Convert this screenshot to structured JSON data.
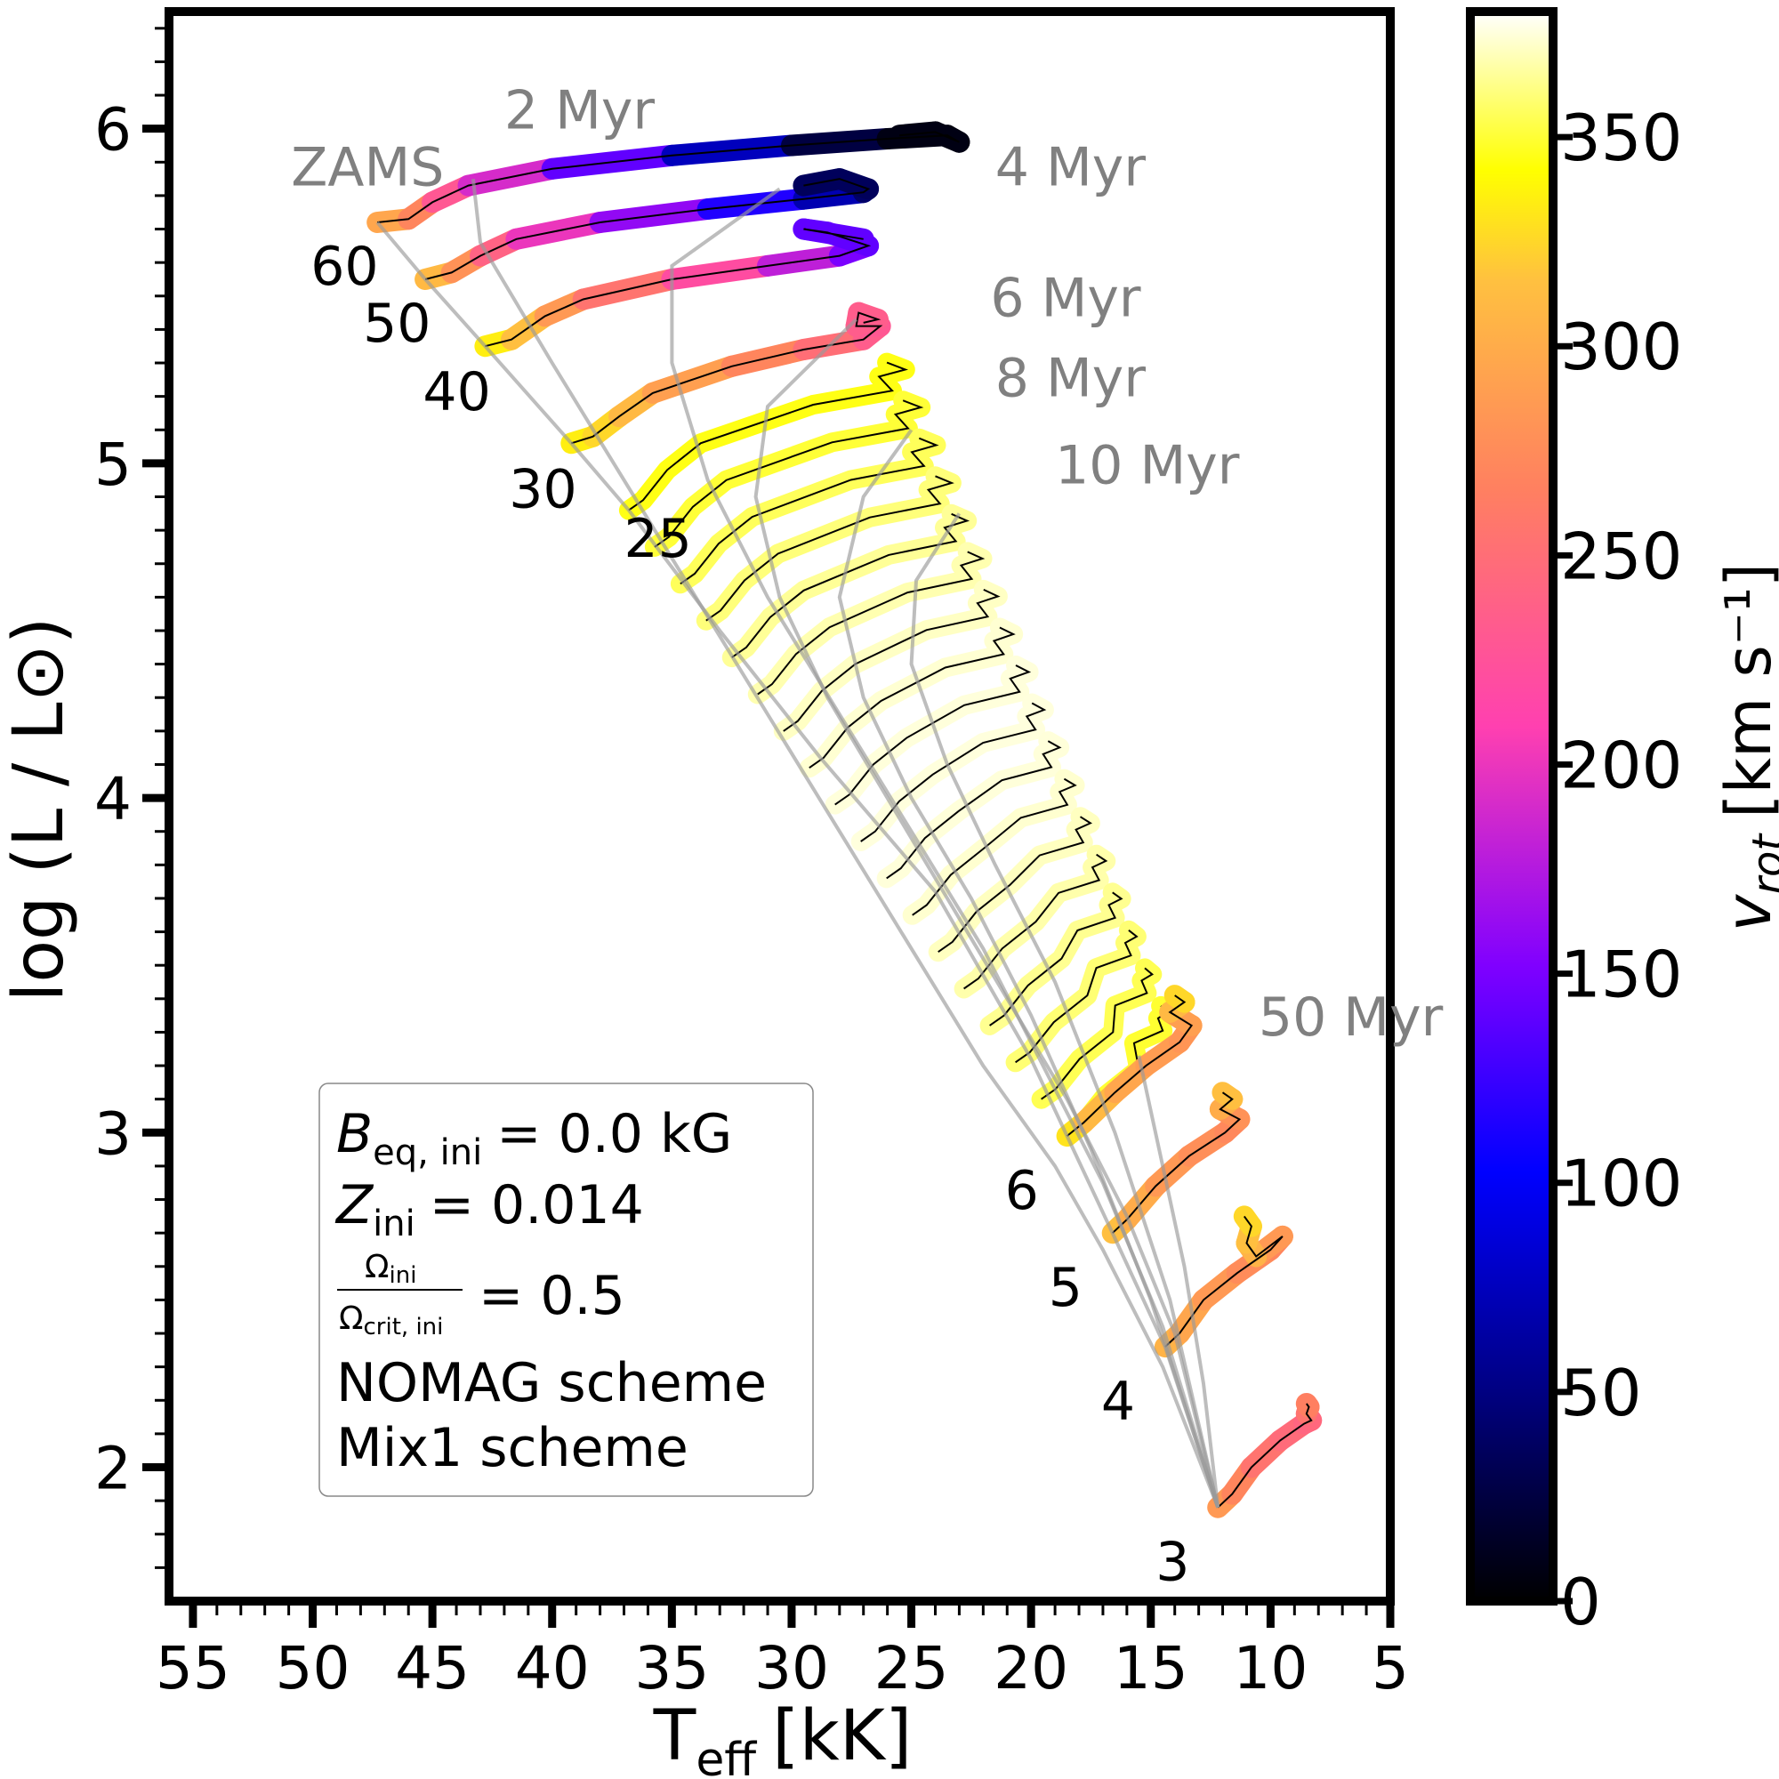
{
  "chart_data": {
    "type": "line",
    "title": "",
    "x_axis": {
      "label_base": "T",
      "label_sub": "eff",
      "label_unit": "[kK]",
      "range": [
        56,
        5
      ],
      "reversed": true,
      "ticks": [
        55,
        50,
        45,
        40,
        35,
        30,
        25,
        20,
        15,
        10,
        5
      ],
      "tick_labels": [
        "55",
        "50",
        "45",
        "40",
        "35",
        "30",
        "25",
        "20",
        "15",
        "10",
        "5"
      ]
    },
    "y_axis": {
      "label": "log (L / L⊙)",
      "range": [
        1.6,
        6.35
      ],
      "ticks": [
        2,
        3,
        4,
        5,
        6
      ],
      "tick_labels": [
        "2",
        "3",
        "4",
        "5",
        "6"
      ]
    },
    "colorbar": {
      "label": "v",
      "label_sub": "rot",
      "label_unit": "[km s⁻¹]",
      "range": [
        0,
        380
      ],
      "ticks": [
        0,
        50,
        100,
        150,
        200,
        250,
        300,
        350
      ],
      "tick_labels": [
        "0",
        "50",
        "100",
        "150",
        "200",
        "250",
        "300",
        "350"
      ],
      "colormap": "gnuplot2"
    },
    "series": [
      {
        "mass": 60,
        "label": "60",
        "x": [
          47.3,
          46.0,
          45.0,
          43.5,
          40.0,
          35.0,
          30.0,
          26.0,
          23.5,
          23.0,
          24.0,
          25.5
        ],
        "y": [
          5.72,
          5.73,
          5.78,
          5.83,
          5.88,
          5.92,
          5.95,
          5.97,
          5.98,
          5.96,
          5.99,
          5.98
        ],
        "v": [
          300,
          290,
          250,
          210,
          170,
          110,
          40,
          10,
          5,
          5,
          10,
          5
        ]
      },
      {
        "mass": 50,
        "label": "50",
        "x": [
          45.3,
          44.2,
          43.0,
          41.5,
          38.0,
          33.5,
          29.5,
          27.0,
          26.8,
          28.0,
          29.5
        ],
        "y": [
          5.55,
          5.57,
          5.62,
          5.67,
          5.72,
          5.76,
          5.79,
          5.81,
          5.82,
          5.85,
          5.83
        ],
        "v": [
          320,
          300,
          260,
          220,
          180,
          140,
          90,
          50,
          30,
          40,
          30
        ]
      },
      {
        "mass": 40,
        "label": "40",
        "x": [
          42.8,
          41.7,
          40.3,
          38.7,
          35.0,
          31.0,
          28.0,
          26.8,
          28.5,
          29.5,
          27.0
        ],
        "y": [
          5.35,
          5.37,
          5.44,
          5.49,
          5.55,
          5.59,
          5.62,
          5.65,
          5.69,
          5.7,
          5.67
        ],
        "v": [
          340,
          330,
          300,
          270,
          240,
          200,
          160,
          140,
          140,
          140,
          140
        ]
      },
      {
        "mass": 30,
        "label": "30",
        "x": [
          39.2,
          38.3,
          37.2,
          35.8,
          32.5,
          29.5,
          27.0,
          26.3,
          27.3,
          27.2,
          26.4,
          27.0
        ],
        "y": [
          5.06,
          5.08,
          5.14,
          5.21,
          5.29,
          5.34,
          5.37,
          5.41,
          5.41,
          5.45,
          5.43,
          5.42
        ],
        "v": [
          340,
          330,
          320,
          300,
          280,
          260,
          240,
          230,
          230,
          240,
          230,
          240
        ]
      },
      {
        "mass": 6,
        "label": "6",
        "x": [
          18.5,
          17.8,
          16.5,
          15.2,
          13.8,
          13.3,
          14.2,
          13.6,
          14.0
        ],
        "y": [
          2.99,
          3.03,
          3.12,
          3.2,
          3.27,
          3.32,
          3.36,
          3.39,
          3.41
        ],
        "v": [
          340,
          320,
          300,
          290,
          285,
          280,
          300,
          320,
          330
        ]
      },
      {
        "mass": 5,
        "label": "5",
        "x": [
          16.6,
          16.0,
          14.8,
          13.4,
          11.9,
          11.3,
          12.1,
          11.6,
          12.0
        ],
        "y": [
          2.7,
          2.74,
          2.84,
          2.93,
          3.0,
          3.04,
          3.07,
          3.1,
          3.12
        ],
        "v": [
          320,
          310,
          290,
          280,
          275,
          270,
          290,
          310,
          320
        ]
      },
      {
        "mass": 4,
        "label": "4",
        "x": [
          14.4,
          13.8,
          12.8,
          11.4,
          10.0,
          9.5,
          10.6,
          11.0,
          10.8,
          11.1
        ],
        "y": [
          2.36,
          2.4,
          2.5,
          2.58,
          2.65,
          2.69,
          2.63,
          2.67,
          2.72,
          2.75
        ],
        "v": [
          310,
          300,
          290,
          280,
          270,
          270,
          300,
          310,
          320,
          330
        ]
      },
      {
        "mass": 3,
        "label": "3",
        "x": [
          12.2,
          11.6,
          10.8,
          9.6,
          8.6,
          8.3,
          8.5,
          8.4,
          8.5
        ],
        "y": [
          1.88,
          1.92,
          2.0,
          2.08,
          2.13,
          2.14,
          2.16,
          2.18,
          2.19
        ],
        "v": [
          290,
          280,
          260,
          250,
          245,
          240,
          250,
          260,
          270
        ]
      }
    ],
    "zams": {
      "label": "ZAMS",
      "x": [
        47.3,
        45.3,
        42.8,
        39.2,
        36.8,
        33.0,
        28.8,
        24.0,
        20.0,
        18.5,
        16.6,
        14.4,
        12.2
      ],
      "y": [
        5.72,
        5.55,
        5.35,
        5.06,
        4.86,
        4.5,
        4.12,
        3.72,
        3.22,
        2.99,
        2.7,
        2.36,
        1.88
      ]
    },
    "isochrones": [
      {
        "label": "2 Myr",
        "x": [
          43.3,
          43.0,
          40.0,
          37.0,
          34.0,
          31.0,
          28.0,
          25.0,
          22.0,
          19.0,
          17.0,
          14.5,
          12.2
        ],
        "y": [
          5.85,
          5.66,
          5.3,
          4.95,
          4.6,
          4.25,
          3.9,
          3.55,
          3.2,
          2.9,
          2.65,
          2.3,
          1.88
        ]
      },
      {
        "label": "4 Myr",
        "x": [
          30.5,
          35.0,
          35.0,
          33.5,
          31.0,
          28.0,
          25.0,
          22.0,
          19.5,
          17.0,
          14.5,
          12.2
        ],
        "y": [
          5.82,
          5.59,
          5.3,
          4.95,
          4.6,
          4.25,
          3.9,
          3.55,
          3.2,
          2.85,
          2.42,
          1.88
        ]
      },
      {
        "label": "6 Myr",
        "x": [
          27.3,
          31.0,
          31.5,
          30.5,
          28.5,
          26.0,
          23.5,
          21.0,
          18.5,
          16.0,
          14.0,
          12.2
        ],
        "y": [
          5.43,
          5.17,
          4.9,
          4.6,
          4.3,
          4.0,
          3.7,
          3.4,
          3.1,
          2.75,
          2.4,
          1.88
        ]
      },
      {
        "label": "8 Myr",
        "x": [
          25.0,
          27.0,
          28.0,
          27.0,
          25.0,
          22.5,
          20.0,
          17.5,
          15.0,
          12.2
        ],
        "y": [
          5.1,
          4.9,
          4.6,
          4.3,
          4.0,
          3.7,
          3.35,
          2.95,
          2.5,
          1.88
        ]
      },
      {
        "label": "10 Myr",
        "x": [
          23.0,
          24.8,
          25.0,
          23.5,
          21.5,
          19.0,
          16.5,
          14.2,
          12.2
        ],
        "y": [
          4.85,
          4.65,
          4.4,
          4.1,
          3.8,
          3.45,
          3.0,
          2.5,
          1.88
        ]
      },
      {
        "label": "50 Myr",
        "x": [
          15.5,
          14.5,
          13.6,
          12.8,
          12.2
        ],
        "y": [
          3.23,
          2.9,
          2.6,
          2.25,
          1.88
        ]
      }
    ],
    "dense_tracks": {
      "count": 17,
      "note": "intermediate mass tracks between 25 and 6 Msun, unlabeled",
      "v_range": [
        300,
        375
      ]
    },
    "annotations": [
      {
        "text": "ZAMS",
        "x": 50.9,
        "y": 5.83
      },
      {
        "text": "2 Myr",
        "x": 42.0,
        "y": 6.0
      },
      {
        "text": "4 Myr",
        "x": 21.5,
        "y": 5.83
      },
      {
        "text": "6 Myr",
        "x": 21.7,
        "y": 5.44
      },
      {
        "text": "8 Myr",
        "x": 21.5,
        "y": 5.2
      },
      {
        "text": "10 Myr",
        "x": 19.0,
        "y": 4.94
      },
      {
        "text": "50 Myr",
        "x": 10.5,
        "y": 3.29
      },
      {
        "text": "25",
        "x": 37.0,
        "y": 4.72
      }
    ],
    "legend_box": {
      "lines": [
        {
          "base": "B",
          "sub": "eq, ini",
          "rest": "= 0.0 kG"
        },
        {
          "base": "Z",
          "sub": "ini",
          "rest": "= 0.014"
        },
        {
          "num": "Ω",
          "num_sub": "ini",
          "den": "Ω",
          "den_sub": "crit, ini",
          "rest": "= 0.5"
        },
        {
          "text": "NOMAG scheme"
        },
        {
          "text": "Mix1 scheme"
        }
      ],
      "placement": "lower-left"
    }
  }
}
